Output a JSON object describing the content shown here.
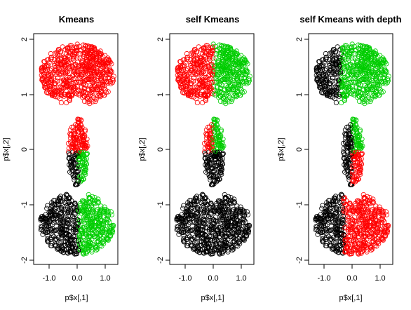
{
  "colors": {
    "c1": "#000000",
    "c2": "#ff0000",
    "c3": "#00cd00"
  },
  "chart_data": [
    {
      "type": "scatter",
      "title": "Kmeans",
      "xlabel": "p$x[,1]",
      "ylabel": "p$x[,2]",
      "xticks": [
        "-1.0",
        "0.0",
        "1.0"
      ],
      "yticks": [
        "-2",
        "-1",
        "0",
        "1",
        "2"
      ],
      "xlim": [
        -1.5,
        1.5
      ],
      "ylim": [
        -2,
        2
      ],
      "grid": false,
      "legend": "none",
      "marker": "open-circle",
      "clusters": [
        {
          "color": "red",
          "region": "top kidney (y from 0.75 to 1.9) and upper half of middle ellipse (y > -0.05)"
        },
        {
          "color": "black",
          "region": "lower-left of middle ellipse and left half of bottom kidney (x < 0.05)"
        },
        {
          "color": "green",
          "region": "lower-right of middle ellipse and right half of bottom kidney (x > 0.05)"
        }
      ]
    },
    {
      "type": "scatter",
      "title": "self Kmeans",
      "xlabel": "p$x[,1]",
      "ylabel": "p$x[,2]",
      "xticks": [
        "-1.0",
        "0.0",
        "1.0"
      ],
      "yticks": [
        "-2",
        "-1",
        "0",
        "1",
        "2"
      ],
      "xlim": [
        -1.5,
        1.5
      ],
      "ylim": [
        -2,
        2
      ],
      "grid": false,
      "legend": "none",
      "marker": "open-circle",
      "clusters": [
        {
          "color": "red",
          "region": "left half of top kidney (x < 0) and upper-left of middle ellipse"
        },
        {
          "color": "green",
          "region": "right half of top kidney (x > 0) and upper-right of middle ellipse"
        },
        {
          "color": "black",
          "region": "lower half of middle ellipse (y < -0.05) and entire bottom kidney"
        }
      ]
    },
    {
      "type": "scatter",
      "title": "self Kmeans with depth",
      "xlabel": "p$x[,1]",
      "ylabel": "p$x[,2]",
      "xticks": [
        "-1.0",
        "0.0",
        "1.0"
      ],
      "yticks": [
        "-2",
        "-1",
        "0",
        "1",
        "2"
      ],
      "xlim": [
        -1.5,
        1.5
      ],
      "ylim": [
        -2,
        2
      ],
      "grid": false,
      "legend": "none",
      "marker": "open-circle",
      "clusters": [
        {
          "color": "black",
          "region": "left part of top and bottom kidneys and left of middle ellipse (x < about -0.4 at top, -0.3 at bottom, 0 in middle)"
        },
        {
          "color": "green",
          "region": "right part of top kidney and upper-right of middle ellipse"
        },
        {
          "color": "red",
          "region": "lower-right of middle ellipse and right part of bottom kidney"
        }
      ]
    }
  ]
}
